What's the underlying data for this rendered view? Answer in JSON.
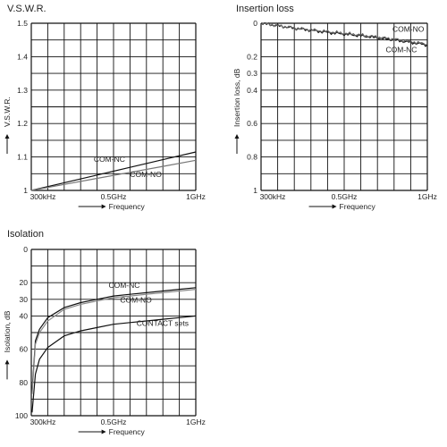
{
  "chart_data": [
    {
      "id": "vswr",
      "type": "line",
      "title": "V.S.W.R.",
      "xlabel": "Frequency",
      "ylabel": "V.S.W.R.",
      "xlim": [
        0,
        1000
      ],
      "ylim": [
        1,
        1.5
      ],
      "y_inverted": false,
      "grid": true,
      "x_ticks": [
        {
          "v": 0,
          "label": "300kHz"
        },
        {
          "v": 500,
          "label": "0.5GHz"
        },
        {
          "v": 1000,
          "label": "1GHz"
        }
      ],
      "y_ticks": [
        {
          "v": 1,
          "label": "1"
        },
        {
          "v": 1.1,
          "label": "1.1"
        },
        {
          "v": 1.2,
          "label": "1.2"
        },
        {
          "v": 1.3,
          "label": "1.3"
        },
        {
          "v": 1.4,
          "label": "1.4"
        },
        {
          "v": 1.5,
          "label": "1.5"
        }
      ],
      "series": [
        {
          "name": "COM-NC",
          "color": "#111111",
          "x": [
            0,
            200,
            400,
            600,
            800,
            1000
          ],
          "y": [
            1.0,
            1.023,
            1.046,
            1.069,
            1.092,
            1.115
          ]
        },
        {
          "name": "COM-NO",
          "color": "#777777",
          "x": [
            0,
            200,
            400,
            600,
            800,
            1000
          ],
          "y": [
            1.0,
            1.018,
            1.036,
            1.054,
            1.072,
            1.09
          ]
        }
      ],
      "annotations": [
        {
          "text": "COM-NC",
          "x": 380,
          "y": 1.085
        },
        {
          "text": "COM-NO",
          "x": 600,
          "y": 1.04
        }
      ]
    },
    {
      "id": "insertion",
      "type": "line",
      "title": "Insertion loss",
      "xlabel": "Frequency",
      "ylabel": "Insertion loss, dB",
      "xlim": [
        0,
        1000
      ],
      "ylim": [
        0,
        1
      ],
      "y_inverted": true,
      "grid": true,
      "x_ticks": [
        {
          "v": 0,
          "label": "300kHz"
        },
        {
          "v": 500,
          "label": "0.5GHz"
        },
        {
          "v": 1000,
          "label": "1GHz"
        }
      ],
      "y_ticks": [
        {
          "v": 0,
          "label": "0"
        },
        {
          "v": 0.2,
          "label": "0.2"
        },
        {
          "v": 0.3,
          "label": "0.3"
        },
        {
          "v": 0.4,
          "label": "0.4"
        },
        {
          "v": 0.6,
          "label": "0.6"
        },
        {
          "v": 0.8,
          "label": "0.8"
        },
        {
          "v": 1,
          "label": "1"
        }
      ],
      "series": [
        {
          "name": "COM-NO",
          "color": "#111111",
          "x": [
            0,
            200,
            400,
            600,
            800,
            1000
          ],
          "y": [
            0.0,
            0.03,
            0.055,
            0.075,
            0.1,
            0.13
          ]
        },
        {
          "name": "COM-NC",
          "color": "#666666",
          "x": [
            0,
            200,
            400,
            600,
            800,
            1000
          ],
          "y": [
            0.0,
            0.028,
            0.05,
            0.07,
            0.095,
            0.125
          ]
        }
      ],
      "annotations": [
        {
          "text": "COM-NO",
          "x": 790,
          "y": 0.05
        },
        {
          "text": "COM-NC",
          "x": 750,
          "y": 0.175
        }
      ]
    },
    {
      "id": "isolation",
      "type": "line",
      "title": "Isolation",
      "xlabel": "Frequency",
      "ylabel": "Isolation, dB",
      "xlim": [
        0,
        1000
      ],
      "ylim": [
        0,
        100
      ],
      "y_inverted": true,
      "grid": true,
      "x_ticks": [
        {
          "v": 0,
          "label": "300kHz"
        },
        {
          "v": 500,
          "label": "0.5GHz"
        },
        {
          "v": 1000,
          "label": "1GHz"
        }
      ],
      "y_ticks": [
        {
          "v": 0,
          "label": "0"
        },
        {
          "v": 20,
          "label": "20"
        },
        {
          "v": 30,
          "label": "30"
        },
        {
          "v": 40,
          "label": "40"
        },
        {
          "v": 60,
          "label": "60"
        },
        {
          "v": 80,
          "label": "80"
        },
        {
          "v": 100,
          "label": "100"
        }
      ],
      "series": [
        {
          "name": "COM-NC",
          "color": "#111111",
          "x": [
            5,
            25,
            50,
            100,
            200,
            300,
            400,
            500,
            600,
            700,
            800,
            900,
            1000
          ],
          "y": [
            85,
            55,
            48,
            41,
            35,
            32,
            30,
            28,
            27,
            26,
            25,
            24,
            23
          ]
        },
        {
          "name": "COM-NO",
          "color": "#888888",
          "x": [
            5,
            25,
            50,
            100,
            200,
            300,
            400,
            500,
            600,
            700,
            800,
            900,
            1000
          ],
          "y": [
            87,
            57,
            50,
            43,
            36,
            33,
            31,
            29,
            28,
            27,
            26,
            25,
            24
          ]
        },
        {
          "name": "CONTACT sets",
          "color": "#111111",
          "x": [
            5,
            25,
            50,
            100,
            200,
            300,
            400,
            500,
            600,
            700,
            800,
            900,
            1000
          ],
          "y": [
            98,
            75,
            66,
            59,
            52,
            49,
            47,
            45,
            44,
            43,
            42,
            41,
            40
          ]
        }
      ],
      "annotations": [
        {
          "text": "COM-NC",
          "x": 470,
          "y": 23
        },
        {
          "text": "COM-NO",
          "x": 540,
          "y": 32
        },
        {
          "text": "CONTACT sets",
          "x": 640,
          "y": 46
        }
      ]
    }
  ]
}
